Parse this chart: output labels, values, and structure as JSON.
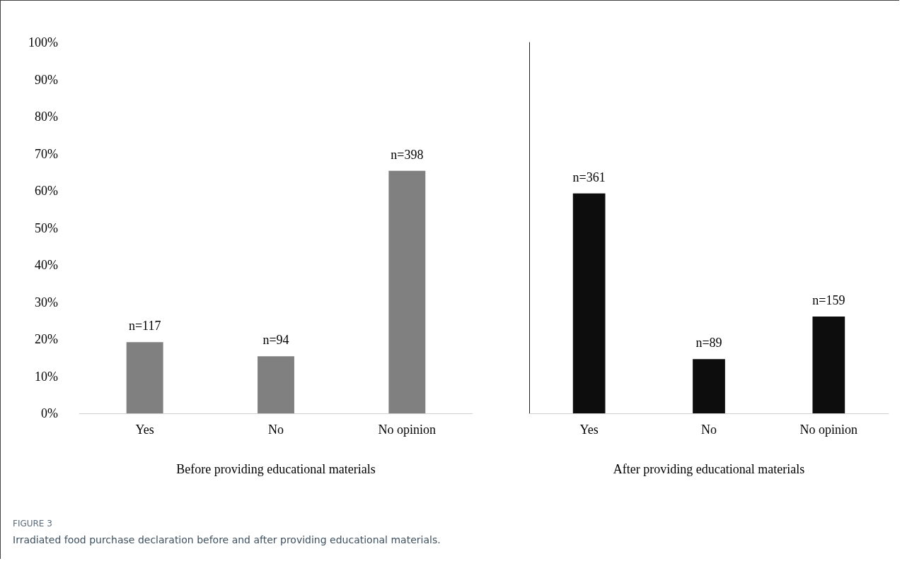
{
  "chart_data": [
    {
      "type": "bar",
      "categories": [
        "Yes",
        "No",
        "No opinion"
      ],
      "xlabel": "Before providing educational materials",
      "series": [
        {
          "color": "#808080",
          "values": [
            19.2,
            15.4,
            65.4
          ]
        }
      ],
      "ylim": [
        0,
        100
      ],
      "yticks": [
        {
          "value": 0,
          "label": "0%"
        },
        {
          "value": 10,
          "label": "10%"
        },
        {
          "value": 20,
          "label": "20%"
        },
        {
          "value": 30,
          "label": "30%"
        },
        {
          "value": 40,
          "label": "40%"
        },
        {
          "value": 50,
          "label": "50%"
        },
        {
          "value": 60,
          "label": "60%"
        },
        {
          "value": 70,
          "label": "70%"
        },
        {
          "value": 80,
          "label": "80%"
        },
        {
          "value": 90,
          "label": "90%"
        },
        {
          "value": 100,
          "label": "100%"
        }
      ],
      "grid": false,
      "annotations": [
        {
          "text": "n=117",
          "x": "Yes",
          "y": 19.2
        },
        {
          "text": "n=94",
          "x": "No",
          "y": 15.4
        },
        {
          "text": "n=398",
          "x": "No opinion",
          "y": 65.4
        },
        "FIGURE 3",
        "Irradiated food purchase declaration before and after providing educational materials."
      ]
    },
    {
      "type": "bar",
      "categories": [
        "Yes",
        "No",
        "No opinion"
      ],
      "xlabel": "After providing educational materials",
      "series": [
        {
          "color": "#0d0d0d",
          "values": [
            59.3,
            14.6,
            26.1
          ]
        }
      ],
      "ylim": [
        0,
        100
      ],
      "grid": false,
      "tick_labels": "x",
      "annotations": [
        {
          "text": "n=361",
          "x": "Yes",
          "y": 59.3
        },
        {
          "text": "n=89",
          "x": "No",
          "y": 14.6
        },
        {
          "text": "n=159",
          "x": "No opinion",
          "y": 26.1
        }
      ]
    }
  ]
}
